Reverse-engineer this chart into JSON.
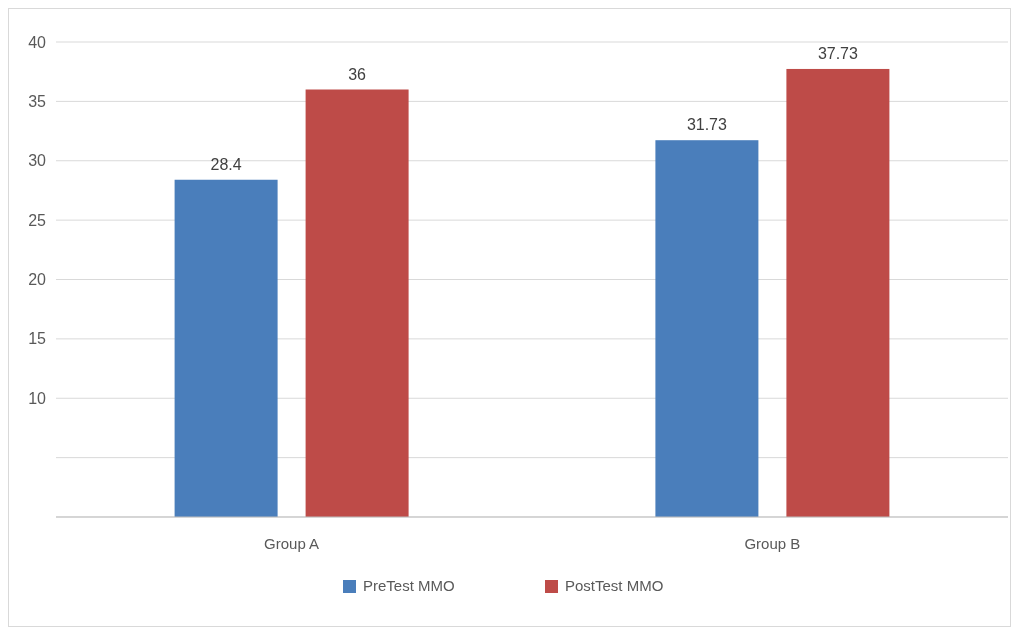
{
  "chart_data": {
    "type": "bar",
    "categories": [
      "Group A",
      "Group B"
    ],
    "series": [
      {
        "name": "PreTest MMO",
        "color": "#4a7ebb",
        "values": [
          28.4,
          31.73
        ]
      },
      {
        "name": "PostTest MMO",
        "color": "#be4b48",
        "values": [
          36,
          37.73
        ]
      }
    ],
    "ylim": [
      0,
      40
    ],
    "yticks": [
      {
        "value": 0,
        "label": null
      },
      {
        "value": 5,
        "label": null
      },
      10,
      15,
      20,
      25,
      30,
      35,
      40
    ],
    "grid": "y",
    "legend": "bottom",
    "data_labels": true
  }
}
